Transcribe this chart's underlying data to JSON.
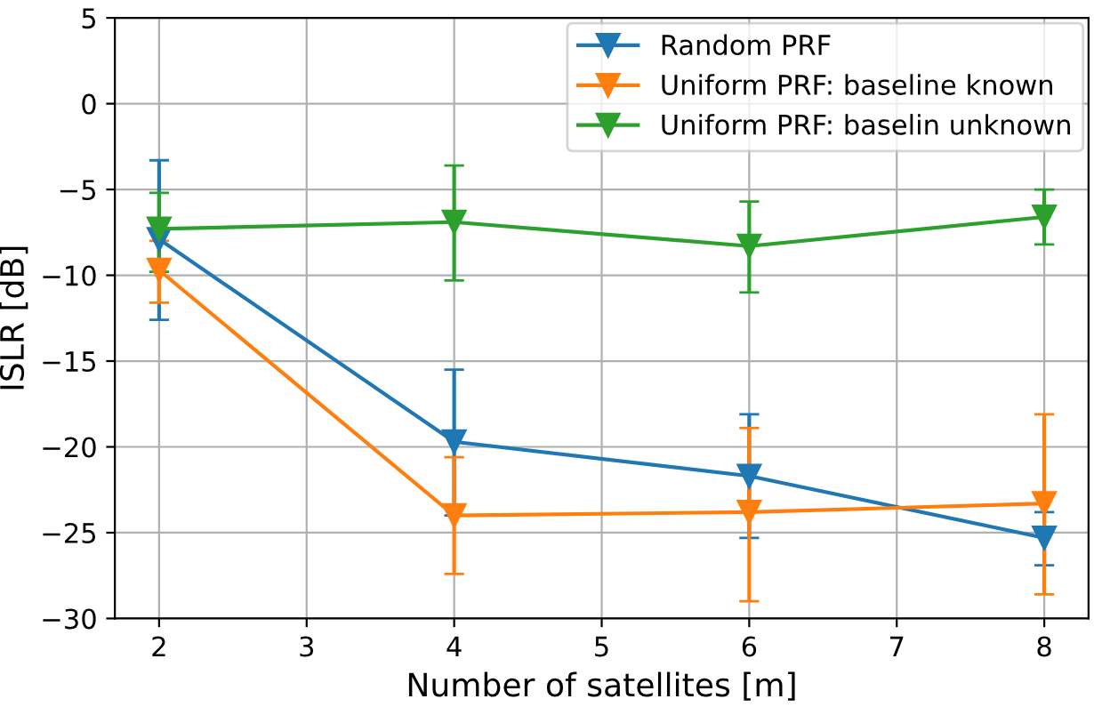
{
  "chart_data": {
    "type": "line",
    "xlabel": "Number of satellites [m]",
    "ylabel": "ISLR [dB]",
    "x": [
      2,
      4,
      6,
      8
    ],
    "xlim": [
      1.7,
      8.3
    ],
    "xticks": [
      2,
      3,
      4,
      5,
      6,
      7,
      8
    ],
    "ylim": [
      -30,
      5
    ],
    "yticks": [
      -30,
      -25,
      -20,
      -15,
      -10,
      -5,
      0,
      5
    ],
    "grid": true,
    "legend": "top right",
    "marker": "triangle",
    "line_style": "solid",
    "series": [
      {
        "name": "Random PRF",
        "color": "#1f77b4",
        "values": [
          -7.9,
          -19.7,
          -21.7,
          -25.3
        ],
        "errors": [
          [
            -12.6,
            -3.3
          ],
          [
            -24.0,
            -15.5
          ],
          [
            -25.3,
            -18.1
          ],
          [
            -26.9,
            -23.8
          ]
        ]
      },
      {
        "name": "Uniform PRF: baseline known",
        "color": "#ff7f0e",
        "values": [
          -9.7,
          -24.0,
          -23.8,
          -23.3
        ],
        "errors": [
          [
            -11.6,
            -8.0
          ],
          [
            -27.4,
            -20.6
          ],
          [
            -29.0,
            -18.9
          ],
          [
            -28.6,
            -18.1
          ]
        ]
      },
      {
        "name": "Uniform PRF: baselin unknown",
        "color": "#2ca02c",
        "values": [
          -7.3,
          -6.9,
          -8.3,
          -6.6
        ],
        "errors": [
          [
            -9.8,
            -5.2
          ],
          [
            -10.3,
            -3.6
          ],
          [
            -11.0,
            -5.7
          ],
          [
            -8.2,
            -5.0
          ]
        ]
      }
    ]
  }
}
